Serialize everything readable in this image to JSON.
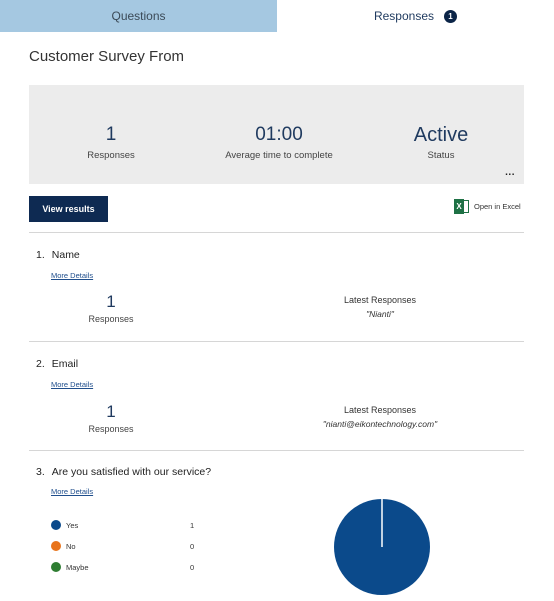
{
  "tabs": {
    "questions_label": "Questions",
    "responses_label": "Responses",
    "responses_badge": "1"
  },
  "form_title": "Customer Survey From",
  "summary": {
    "responses_value": "1",
    "responses_label": "Responses",
    "avg_time_value": "01:00",
    "avg_time_label": "Average time to complete",
    "status_value": "Active",
    "status_label": "Status",
    "more_glyph": "..."
  },
  "toolbar": {
    "view_results_label": "View results",
    "open_excel_label": "Open in Excel",
    "excel_icon_letter": "X",
    "excel_icon": "excel-icon"
  },
  "questions": [
    {
      "number": "1.",
      "title": "Name",
      "more_details": "More Details",
      "count_value": "1",
      "count_label": "Responses",
      "latest_label": "Latest Responses",
      "latest_value": "\"Nianti\""
    },
    {
      "number": "2.",
      "title": "Email",
      "more_details": "More Details",
      "count_value": "1",
      "count_label": "Responses",
      "latest_label": "Latest Responses",
      "latest_value": "\"nianti@eikontechnology.com\""
    },
    {
      "number": "3.",
      "title": "Are you satisfied with our service?",
      "more_details": "More Details",
      "options": [
        {
          "label": "Yes",
          "count": "1",
          "color": "#0b4a8b"
        },
        {
          "label": "No",
          "count": "0",
          "color": "#e8731a"
        },
        {
          "label": "Maybe",
          "count": "0",
          "color": "#2e7d32"
        }
      ]
    }
  ],
  "chart_data": {
    "type": "pie",
    "categories": [
      "Yes",
      "No",
      "Maybe"
    ],
    "values": [
      1,
      0,
      0
    ],
    "colors": [
      "#0b4a8b",
      "#e8731a",
      "#2e7d32"
    ],
    "title": "",
    "legend": "left"
  },
  "colors": {
    "accent": "#0e2a52",
    "tab_inactive": "#a5c8e1",
    "summary_bg": "#ececec",
    "link": "#1f4e8c"
  }
}
